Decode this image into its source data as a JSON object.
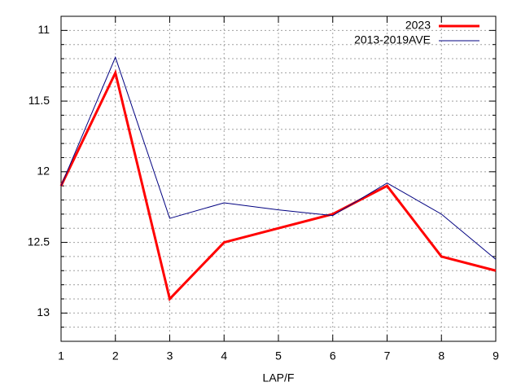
{
  "chart_data": {
    "type": "line",
    "x_label": "LAP/F",
    "x": [
      1,
      2,
      3,
      4,
      5,
      6,
      7,
      8,
      9
    ],
    "xlim": [
      1,
      9
    ],
    "xticks": [
      1,
      2,
      3,
      4,
      5,
      6,
      7,
      8,
      9
    ],
    "ylim": [
      10.9,
      13.2
    ],
    "y_reversed": true,
    "yticks": [
      11,
      11.5,
      12,
      12.5,
      13
    ],
    "yminor_ticks": [
      11.1,
      11.2,
      11.3,
      11.4,
      11.6,
      11.7,
      11.8,
      11.9,
      12.1,
      12.2,
      12.3,
      12.4,
      12.6,
      12.7,
      12.8,
      12.9,
      13.1
    ],
    "grid": true,
    "legend": "top-right",
    "series": [
      {
        "name": "2023",
        "color": "#ff0000",
        "width": 3,
        "values": [
          12.1,
          11.3,
          12.9,
          12.5,
          12.4,
          12.3,
          12.1,
          12.6,
          12.7
        ]
      },
      {
        "name": "2013-2019AVE",
        "color": "#000080",
        "width": 1,
        "values": [
          12.1,
          11.19,
          12.33,
          12.22,
          12.27,
          12.31,
          12.08,
          12.3,
          12.62
        ]
      }
    ]
  }
}
